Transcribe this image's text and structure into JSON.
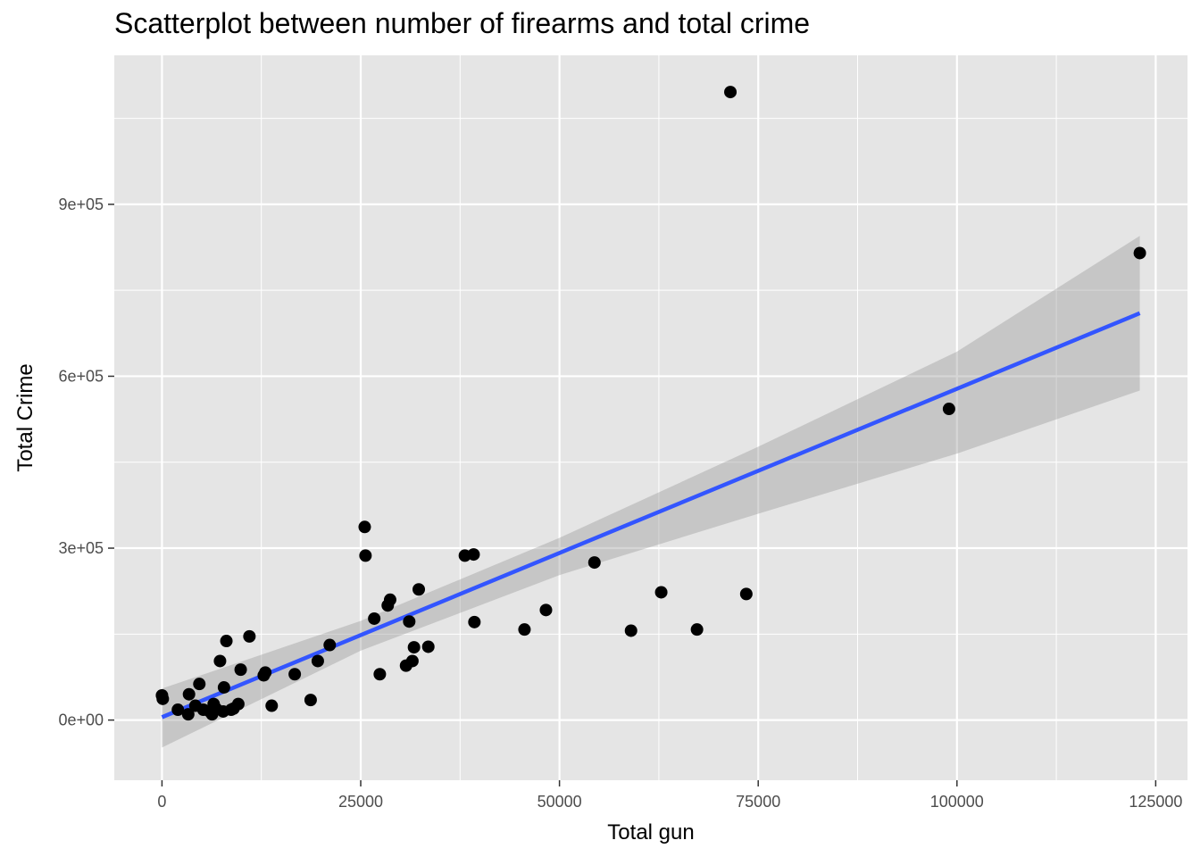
{
  "chart_data": {
    "type": "scatter",
    "title": "Scatterplot between number of firearms and total crime",
    "xlabel": "Total gun",
    "ylabel": "Total Crime",
    "xlim": [
      -6000,
      129000
    ],
    "ylim": [
      -105000,
      1160000
    ],
    "x_ticks": [
      0,
      25000,
      50000,
      75000,
      100000,
      125000
    ],
    "x_tick_labels": [
      "0",
      "25000",
      "50000",
      "75000",
      "100000",
      "125000"
    ],
    "y_ticks": [
      0,
      300000,
      600000,
      900000
    ],
    "y_tick_labels": [
      "0e+00",
      "3e+05",
      "6e+05",
      "9e+05"
    ],
    "grid": true,
    "background_color": "#e5e5e5",
    "grid_color": "#ffffff",
    "point_color": "#000000",
    "fit_line_color": "#3355ff",
    "ribbon_color": "#999999",
    "fit_line": {
      "x": [
        0,
        123000
      ],
      "y": [
        5000,
        710000
      ]
    },
    "confidence_band": {
      "x": [
        0,
        25000,
        50000,
        75000,
        100000,
        123000
      ],
      "lower": [
        -48000,
        121000,
        253000,
        360000,
        465000,
        575000
      ],
      "upper": [
        55000,
        173000,
        318000,
        477000,
        643000,
        845000
      ]
    },
    "points": [
      {
        "x": 0,
        "y": 43000
      },
      {
        "x": 100,
        "y": 37000
      },
      {
        "x": 2000,
        "y": 18000
      },
      {
        "x": 3300,
        "y": 10000
      },
      {
        "x": 3400,
        "y": 45000
      },
      {
        "x": 4200,
        "y": 25000
      },
      {
        "x": 4700,
        "y": 63000
      },
      {
        "x": 5200,
        "y": 18000
      },
      {
        "x": 6000,
        "y": 15000
      },
      {
        "x": 6300,
        "y": 10000
      },
      {
        "x": 6500,
        "y": 28000
      },
      {
        "x": 6800,
        "y": 20000
      },
      {
        "x": 7300,
        "y": 103000
      },
      {
        "x": 7700,
        "y": 15000
      },
      {
        "x": 7800,
        "y": 57000
      },
      {
        "x": 8100,
        "y": 138000
      },
      {
        "x": 8700,
        "y": 18000
      },
      {
        "x": 9000,
        "y": 20000
      },
      {
        "x": 9600,
        "y": 28000
      },
      {
        "x": 9900,
        "y": 88000
      },
      {
        "x": 11000,
        "y": 146000
      },
      {
        "x": 12800,
        "y": 78000
      },
      {
        "x": 13000,
        "y": 83000
      },
      {
        "x": 13800,
        "y": 25000
      },
      {
        "x": 16700,
        "y": 80000
      },
      {
        "x": 18700,
        "y": 35000
      },
      {
        "x": 19600,
        "y": 103000
      },
      {
        "x": 21100,
        "y": 131000
      },
      {
        "x": 25500,
        "y": 337000
      },
      {
        "x": 25600,
        "y": 287000
      },
      {
        "x": 26700,
        "y": 177000
      },
      {
        "x": 27400,
        "y": 80000
      },
      {
        "x": 28400,
        "y": 200000
      },
      {
        "x": 28700,
        "y": 210000
      },
      {
        "x": 30700,
        "y": 95000
      },
      {
        "x": 31100,
        "y": 172000
      },
      {
        "x": 31500,
        "y": 103000
      },
      {
        "x": 31700,
        "y": 127000
      },
      {
        "x": 32300,
        "y": 228000
      },
      {
        "x": 33500,
        "y": 128000
      },
      {
        "x": 38100,
        "y": 287000
      },
      {
        "x": 39200,
        "y": 289000
      },
      {
        "x": 39300,
        "y": 171000
      },
      {
        "x": 45600,
        "y": 158000
      },
      {
        "x": 48300,
        "y": 192000
      },
      {
        "x": 54400,
        "y": 275000
      },
      {
        "x": 59000,
        "y": 156000
      },
      {
        "x": 62800,
        "y": 223000
      },
      {
        "x": 67300,
        "y": 158000
      },
      {
        "x": 71500,
        "y": 1096000
      },
      {
        "x": 73500,
        "y": 220000
      },
      {
        "x": 99000,
        "y": 543000
      },
      {
        "x": 123000,
        "y": 815000
      }
    ]
  }
}
